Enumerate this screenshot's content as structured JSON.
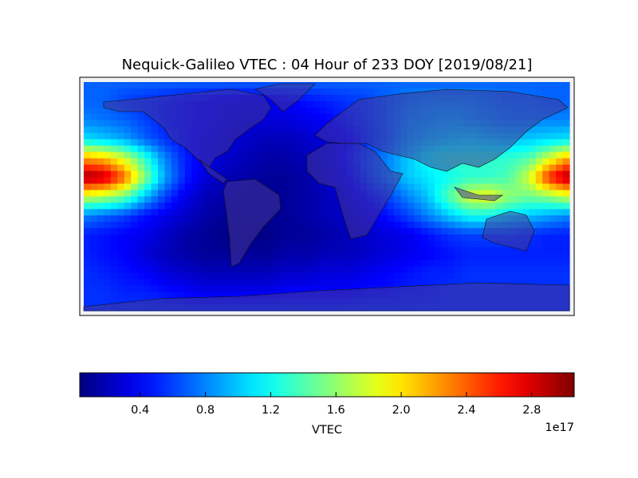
{
  "chart_data": {
    "type": "heatmap",
    "title": "Nequick-Galileo VTEC : 04 Hour of 233 DOY [2019/08/21]",
    "colormap": "jet",
    "colorbar": {
      "label": "VTEC",
      "multiplier": "1e17",
      "ticks": [
        "0.4",
        "0.8",
        "1.2",
        "1.6",
        "2.0",
        "2.4",
        "2.8"
      ],
      "range": [
        0.03,
        3.06
      ],
      "orientation": "horizontal",
      "placement": "bottom"
    },
    "value_units": "1e17",
    "lon": [
      -180,
      -165,
      -150,
      -135,
      -120,
      -105,
      -90,
      -75,
      -60,
      -45,
      -30,
      -15,
      0,
      15,
      30,
      45,
      60,
      75,
      90,
      105,
      120,
      135,
      150,
      165,
      180
    ],
    "lat": [
      90,
      75,
      60,
      45,
      30,
      15,
      0,
      -15,
      -30,
      -45,
      -60,
      -75,
      -90
    ],
    "values": [
      [
        0.7,
        0.7,
        0.7,
        0.7,
        0.7,
        0.7,
        0.7,
        0.7,
        0.7,
        0.7,
        0.7,
        0.7,
        0.7,
        0.7,
        0.7,
        0.7,
        0.7,
        0.7,
        0.7,
        0.7,
        0.7,
        0.7,
        0.7,
        0.7,
        0.7
      ],
      [
        0.7,
        0.7,
        0.6,
        0.55,
        0.5,
        0.45,
        0.4,
        0.35,
        0.35,
        0.35,
        0.4,
        0.45,
        0.5,
        0.55,
        0.6,
        0.7,
        0.8,
        0.85,
        0.85,
        0.85,
        0.8,
        0.75,
        0.75,
        0.7,
        0.7
      ],
      [
        0.8,
        0.75,
        0.7,
        0.6,
        0.5,
        0.45,
        0.4,
        0.35,
        0.3,
        0.3,
        0.3,
        0.35,
        0.4,
        0.5,
        0.6,
        0.7,
        0.85,
        0.9,
        0.95,
        0.9,
        0.85,
        0.8,
        0.8,
        0.8,
        0.8
      ],
      [
        1.1,
        1.0,
        0.9,
        0.7,
        0.55,
        0.45,
        0.35,
        0.3,
        0.25,
        0.2,
        0.2,
        0.25,
        0.3,
        0.4,
        0.55,
        0.7,
        0.9,
        1.0,
        1.05,
        1.1,
        1.05,
        1.0,
        1.0,
        1.05,
        1.1
      ],
      [
        2.2,
        2.1,
        1.8,
        1.3,
        0.8,
        0.5,
        0.35,
        0.25,
        0.2,
        0.15,
        0.15,
        0.2,
        0.3,
        0.45,
        0.65,
        0.8,
        1.0,
        1.2,
        1.3,
        1.3,
        1.3,
        1.3,
        1.4,
        1.8,
        2.2
      ],
      [
        3.0,
        2.9,
        2.4,
        1.6,
        0.9,
        0.5,
        0.3,
        0.2,
        0.15,
        0.1,
        0.1,
        0.15,
        0.25,
        0.4,
        0.6,
        0.8,
        1.0,
        1.1,
        1.2,
        1.3,
        1.3,
        1.4,
        1.8,
        2.6,
        3.0
      ],
      [
        1.8,
        1.7,
        1.5,
        1.0,
        0.6,
        0.35,
        0.2,
        0.15,
        0.1,
        0.1,
        0.1,
        0.15,
        0.2,
        0.3,
        0.45,
        0.6,
        0.8,
        1.0,
        1.4,
        1.8,
        1.9,
        1.6,
        1.5,
        1.6,
        1.8
      ],
      [
        0.8,
        0.7,
        0.6,
        0.45,
        0.35,
        0.25,
        0.15,
        0.1,
        0.1,
        0.1,
        0.1,
        0.15,
        0.2,
        0.25,
        0.35,
        0.45,
        0.6,
        0.8,
        1.0,
        1.2,
        1.2,
        1.1,
        1.0,
        0.9,
        0.8
      ],
      [
        0.5,
        0.45,
        0.4,
        0.35,
        0.25,
        0.15,
        0.1,
        0.05,
        0.05,
        0.05,
        0.1,
        0.1,
        0.15,
        0.2,
        0.25,
        0.3,
        0.35,
        0.45,
        0.55,
        0.6,
        0.6,
        0.6,
        0.55,
        0.5,
        0.5
      ],
      [
        0.5,
        0.45,
        0.4,
        0.3,
        0.2,
        0.15,
        0.1,
        0.1,
        0.1,
        0.1,
        0.15,
        0.15,
        0.2,
        0.2,
        0.25,
        0.3,
        0.35,
        0.4,
        0.45,
        0.5,
        0.5,
        0.5,
        0.5,
        0.5,
        0.5
      ],
      [
        0.55,
        0.5,
        0.45,
        0.4,
        0.3,
        0.25,
        0.2,
        0.2,
        0.2,
        0.2,
        0.25,
        0.25,
        0.3,
        0.3,
        0.35,
        0.4,
        0.45,
        0.5,
        0.5,
        0.55,
        0.55,
        0.55,
        0.55,
        0.55,
        0.55
      ],
      [
        0.55,
        0.55,
        0.5,
        0.5,
        0.45,
        0.4,
        0.35,
        0.35,
        0.35,
        0.35,
        0.4,
        0.4,
        0.4,
        0.4,
        0.45,
        0.45,
        0.5,
        0.5,
        0.55,
        0.55,
        0.55,
        0.55,
        0.55,
        0.55,
        0.55
      ],
      [
        0.55,
        0.55,
        0.55,
        0.55,
        0.55,
        0.55,
        0.55,
        0.55,
        0.55,
        0.55,
        0.55,
        0.55,
        0.55,
        0.55,
        0.55,
        0.55,
        0.55,
        0.55,
        0.55,
        0.55,
        0.55,
        0.55,
        0.55,
        0.55,
        0.55
      ]
    ]
  }
}
